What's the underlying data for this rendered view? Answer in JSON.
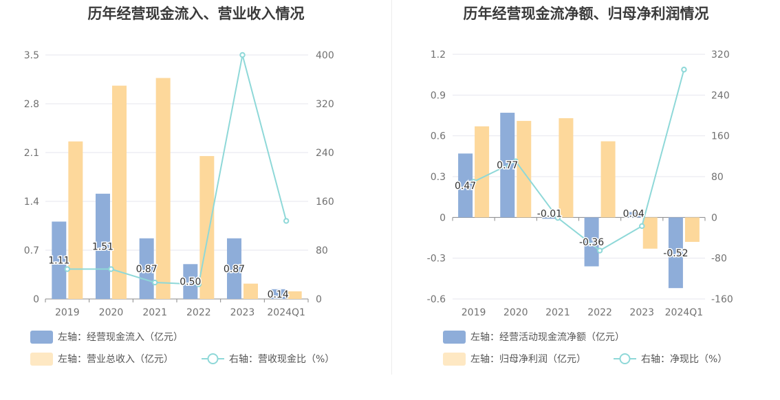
{
  "charts": [
    {
      "title": "历年经营现金流入、营业收入情况",
      "chart_data": {
        "type": "bar",
        "categories": [
          "2019",
          "2020",
          "2021",
          "2022",
          "2023",
          "2024Q1"
        ],
        "left_axis": {
          "ticks": [
            "0",
            "0.7",
            "1.4",
            "2.1",
            "2.8",
            "3.5"
          ],
          "range": [
            0,
            3.5
          ]
        },
        "right_axis": {
          "ticks": [
            "0",
            "80",
            "160",
            "240",
            "320",
            "400"
          ],
          "range": [
            0,
            400
          ]
        },
        "series": [
          {
            "name": "左轴：经营现金流入（亿元）",
            "type": "bar",
            "axis": "left",
            "color": "#8eadd9",
            "values": [
              1.11,
              1.51,
              0.87,
              0.5,
              0.87,
              0.14
            ],
            "labels": [
              "1.11",
              "1.51",
              "0.87",
              "0.50",
              "0.87",
              "0.14"
            ]
          },
          {
            "name": "左轴：营业总收入（亿元）",
            "type": "bar",
            "axis": "left",
            "color": "#fdd89b",
            "values": [
              2.26,
              3.06,
              3.17,
              2.05,
              0.22,
              0.11
            ]
          },
          {
            "name": "右轴：营收现金比（%）",
            "type": "line",
            "axis": "right",
            "color": "#8ed8d8",
            "values": [
              49,
              49,
              27,
              24,
              400,
              128
            ]
          }
        ]
      }
    },
    {
      "title": "历年经营现金流净额、归母净利润情况",
      "chart_data": {
        "type": "bar",
        "categories": [
          "2019",
          "2020",
          "2021",
          "2022",
          "2023",
          "2024Q1"
        ],
        "left_axis": {
          "ticks": [
            "-0.6",
            "-0.3",
            "0",
            "0.3",
            "0.6",
            "0.9",
            "1.2"
          ],
          "range": [
            -0.6,
            1.2
          ]
        },
        "right_axis": {
          "ticks": [
            "-160",
            "-80",
            "0",
            "80",
            "160",
            "240",
            "320"
          ],
          "range": [
            -160,
            320
          ]
        },
        "series": [
          {
            "name": "左轴：经营活动现金流净额（亿元）",
            "type": "bar",
            "axis": "left",
            "color": "#8eadd9",
            "values": [
              0.47,
              0.77,
              -0.01,
              -0.36,
              0.04,
              -0.52
            ],
            "labels": [
              "0.47",
              "0.77",
              "-0.01",
              "-0.36",
              "0.04",
              "-0.52"
            ]
          },
          {
            "name": "左轴：归母净利润（亿元）",
            "type": "bar",
            "axis": "left",
            "color": "#fdd89b",
            "values": [
              0.67,
              0.71,
              0.73,
              0.56,
              -0.23,
              -0.18
            ]
          },
          {
            "name": "右轴：净现比（%）",
            "type": "line",
            "axis": "right",
            "color": "#8ed8d8",
            "values": [
              70,
              110,
              -1,
              -65,
              -17,
              290
            ]
          }
        ]
      }
    }
  ]
}
